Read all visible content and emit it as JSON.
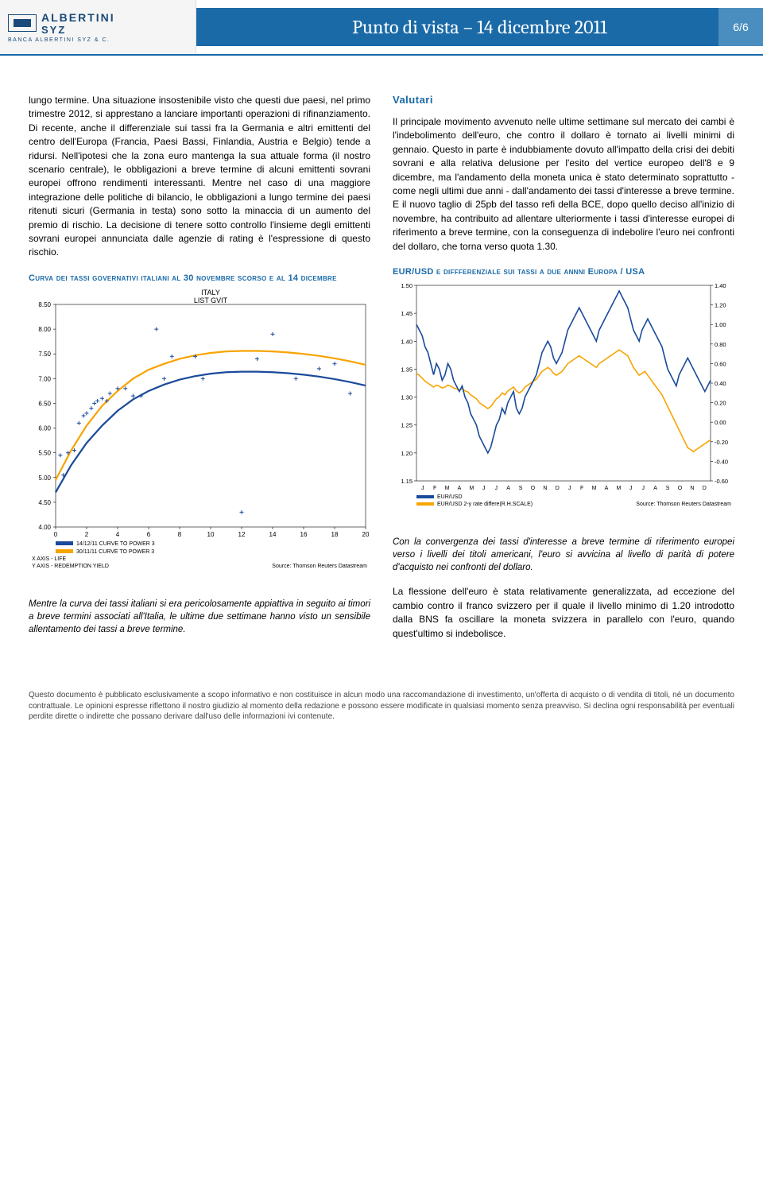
{
  "header": {
    "logo_main1": "ALBERTINI",
    "logo_main2": "SYZ",
    "logo_sub": "BANCA ALBERTINI SYZ & C.",
    "title": "Punto di vista – 14 dicembre 2011",
    "page": "6/6"
  },
  "left_col": {
    "body": "lungo termine. Una situazione insostenibile visto che questi due paesi, nel primo trimestre 2012, si apprestano a lanciare importanti operazioni di rifinanziamento. Di recente, anche il differenziale sui tassi fra la Germania e altri emittenti del centro dell'Europa (Francia, Paesi Bassi, Finlandia, Austria e Belgio) tende a ridursi. Nell'ipotesi che la zona euro mantenga la sua attuale forma (il nostro scenario centrale), le obbligazioni a breve termine di alcuni emittenti sovrani europei offrono rendimenti interessanti. Mentre nel caso di una maggiore integrazione delle politiche di bilancio, le obbligazioni a lungo termine dei paesi ritenuti sicuri (Germania in testa) sono sotto la minaccia di un aumento del premio di rischio. La decisione di tenere sotto controllo l'insieme degli emittenti sovrani europei annunciata dalle agenzie di rating è l'espressione di questo rischio.",
    "chart_heading": "Curva dei tassi governativi italiani al 30 novembre scorso e al 14 dicembre",
    "chart_caption": "Mentre la curva dei tassi italiani si era pericolosamente appiattiva in seguito ai timori a breve termini associati all'Italia, le ultime due settimane hanno visto un sensibile allentamento dei tassi a breve termine."
  },
  "right_col": {
    "section_heading": "Valutari",
    "body": "Il principale movimento avvenuto nelle ultime settimane sul mercato dei cambi è l'indebolimento dell'euro, che contro il dollaro è tornato ai livelli minimi di gennaio. Questo in parte è indubbiamente dovuto all'impatto della crisi dei debiti sovrani e alla relativa delusione per l'esito del vertice europeo dell'8 e 9 dicembre, ma l'andamento della moneta unica è stato determinato soprattutto - come negli ultimi due anni - dall'andamento dei tassi d'interesse a breve termine. E il nuovo taglio di 25pb del tasso refi della BCE, dopo quello deciso all'inizio di novembre, ha contribuito ad allentare ulteriormente i tassi d'interesse europei di riferimento a breve termine, con la conseguenza di indebolire l'euro nei confronti del dollaro, che torna verso quota 1.30.",
    "chart_heading": "EUR/USD e diffferenziale sui tassi a due annni Europa / USA",
    "chart_caption": "Con la convergenza dei tassi d'interesse a breve termine di riferimento europei verso i livelli dei titoli americani, l'euro si avvicina al livello di parità di potere d'acquisto nei confronti del dollaro.",
    "body2": "La flessione dell'euro è stata relativamente generalizzata, ad eccezione del cambio contro il franco svizzero per il quale il livello minimo di 1.20 introdotto dalla BNS fa oscillare la moneta svizzera in parallelo con l'euro, quando quest'ultimo si indebolisce."
  },
  "disclaimer": "Questo documento è pubblicato esclusivamente a scopo informativo e non costituisce in alcun modo una raccomandazione di investimento, un'offerta di acquisto o di vendita di titoli, né un documento contrattuale. Le opinioni espresse riflettono il nostro giudizio al momento della redazione e possono essere modificate in qualsiasi momento senza preavviso. Si declina ogni responsabilità per eventuali perdite dirette o indirette che possano derivare dall'uso delle informazioni ivi contenute.",
  "chart1": {
    "type": "line+scatter",
    "title": "ITALY",
    "subtitle": "LIST GVIT",
    "xlim": [
      0,
      20
    ],
    "xtick_step": 2,
    "ylim": [
      4.0,
      8.5
    ],
    "ytick_step": 0.5,
    "bg_color": "#ffffff",
    "line1_color": "#f7a400",
    "line2_color": "#1a4a9a",
    "scatter_color": "#1a4a9a",
    "legend": [
      "14/12/11 CURVE TO POWER 3",
      "30/11/11 CURVE TO POWER 3"
    ],
    "xaxis_label": "X AXIS - LIFE",
    "yaxis_label": "Y AXIS - REDEMPTION YIELD",
    "source": "Source: Thomson Reuters Datastream",
    "line1": [
      [
        0,
        4.95
      ],
      [
        1,
        5.55
      ],
      [
        2,
        6.05
      ],
      [
        3,
        6.45
      ],
      [
        4,
        6.75
      ],
      [
        5,
        7.0
      ],
      [
        6,
        7.18
      ],
      [
        7,
        7.3
      ],
      [
        8,
        7.4
      ],
      [
        9,
        7.47
      ],
      [
        10,
        7.52
      ],
      [
        11,
        7.55
      ],
      [
        12,
        7.56
      ],
      [
        13,
        7.56
      ],
      [
        14,
        7.55
      ],
      [
        15,
        7.53
      ],
      [
        16,
        7.5
      ],
      [
        17,
        7.46
      ],
      [
        18,
        7.41
      ],
      [
        19,
        7.35
      ],
      [
        20,
        7.28
      ]
    ],
    "line2": [
      [
        0,
        4.7
      ],
      [
        1,
        5.25
      ],
      [
        2,
        5.7
      ],
      [
        3,
        6.05
      ],
      [
        4,
        6.35
      ],
      [
        5,
        6.58
      ],
      [
        6,
        6.75
      ],
      [
        7,
        6.88
      ],
      [
        8,
        6.98
      ],
      [
        9,
        7.05
      ],
      [
        10,
        7.1
      ],
      [
        11,
        7.13
      ],
      [
        12,
        7.14
      ],
      [
        13,
        7.14
      ],
      [
        14,
        7.13
      ],
      [
        15,
        7.11
      ],
      [
        16,
        7.08
      ],
      [
        17,
        7.04
      ],
      [
        18,
        6.99
      ],
      [
        19,
        6.93
      ],
      [
        20,
        6.86
      ]
    ],
    "scatter": [
      [
        0.3,
        5.45
      ],
      [
        0.5,
        5.05
      ],
      [
        0.8,
        5.5
      ],
      [
        1.2,
        5.55
      ],
      [
        1.5,
        6.1
      ],
      [
        1.8,
        6.25
      ],
      [
        2.0,
        6.3
      ],
      [
        2.3,
        6.4
      ],
      [
        2.5,
        6.5
      ],
      [
        2.7,
        6.55
      ],
      [
        3.0,
        6.6
      ],
      [
        3.3,
        6.55
      ],
      [
        3.5,
        6.7
      ],
      [
        4.0,
        6.8
      ],
      [
        4.5,
        6.8
      ],
      [
        5.0,
        6.65
      ],
      [
        5.5,
        6.65
      ],
      [
        6.5,
        8.0
      ],
      [
        7.0,
        7.0
      ],
      [
        7.5,
        7.45
      ],
      [
        9.0,
        7.45
      ],
      [
        9.5,
        7.0
      ],
      [
        12.0,
        4.3
      ],
      [
        13.0,
        7.4
      ],
      [
        14.0,
        7.9
      ],
      [
        15.5,
        7.0
      ],
      [
        17.0,
        7.2
      ],
      [
        18.0,
        7.3
      ],
      [
        19.0,
        6.7
      ]
    ]
  },
  "chart2": {
    "type": "dual-line",
    "yleft_lim": [
      1.15,
      1.5
    ],
    "yleft_step": 0.05,
    "yright_lim": [
      -0.6,
      1.4
    ],
    "yright_step": 0.2,
    "bg_color": "#ffffff",
    "line1_color": "#1a4a9a",
    "line2_color": "#f7a400",
    "legend": [
      "EUR/USD",
      "EUR/USD 2-y rate differe(R.H.SCALE)"
    ],
    "source": "Source: Thomson Reuters Datastream",
    "months": [
      "J",
      "F",
      "M",
      "A",
      "M",
      "J",
      "J",
      "A",
      "S",
      "O",
      "N",
      "D",
      "J",
      "F",
      "M",
      "A",
      "M",
      "J",
      "J",
      "A",
      "S",
      "O",
      "N",
      "D"
    ],
    "line_left": [
      1.43,
      1.42,
      1.41,
      1.39,
      1.38,
      1.36,
      1.34,
      1.36,
      1.35,
      1.33,
      1.34,
      1.36,
      1.35,
      1.33,
      1.32,
      1.31,
      1.32,
      1.3,
      1.29,
      1.27,
      1.26,
      1.25,
      1.23,
      1.22,
      1.21,
      1.2,
      1.21,
      1.23,
      1.25,
      1.26,
      1.28,
      1.27,
      1.29,
      1.3,
      1.31,
      1.28,
      1.27,
      1.28,
      1.3,
      1.31,
      1.32,
      1.33,
      1.34,
      1.36,
      1.38,
      1.39,
      1.4,
      1.39,
      1.37,
      1.36,
      1.37,
      1.38,
      1.4,
      1.42,
      1.43,
      1.44,
      1.45,
      1.46,
      1.45,
      1.44,
      1.43,
      1.42,
      1.41,
      1.4,
      1.42,
      1.43,
      1.44,
      1.45,
      1.46,
      1.47,
      1.48,
      1.49,
      1.48,
      1.47,
      1.46,
      1.44,
      1.42,
      1.41,
      1.4,
      1.42,
      1.43,
      1.44,
      1.43,
      1.42,
      1.41,
      1.4,
      1.39,
      1.37,
      1.35,
      1.34,
      1.33,
      1.32,
      1.34,
      1.35,
      1.36,
      1.37,
      1.36,
      1.35,
      1.34,
      1.33,
      1.32,
      1.31,
      1.32,
      1.33
    ],
    "line_right": [
      0.5,
      0.48,
      0.45,
      0.42,
      0.4,
      0.38,
      0.36,
      0.38,
      0.37,
      0.35,
      0.36,
      0.38,
      0.37,
      0.35,
      0.34,
      0.33,
      0.34,
      0.32,
      0.31,
      0.28,
      0.26,
      0.24,
      0.2,
      0.18,
      0.16,
      0.14,
      0.16,
      0.2,
      0.24,
      0.26,
      0.3,
      0.28,
      0.32,
      0.34,
      0.36,
      0.32,
      0.3,
      0.32,
      0.36,
      0.38,
      0.4,
      0.42,
      0.44,
      0.48,
      0.52,
      0.54,
      0.56,
      0.54,
      0.5,
      0.48,
      0.5,
      0.52,
      0.56,
      0.6,
      0.62,
      0.64,
      0.66,
      0.68,
      0.66,
      0.64,
      0.62,
      0.6,
      0.58,
      0.56,
      0.6,
      0.62,
      0.64,
      0.66,
      0.68,
      0.7,
      0.72,
      0.74,
      0.72,
      0.7,
      0.68,
      0.62,
      0.56,
      0.52,
      0.48,
      0.5,
      0.52,
      0.48,
      0.44,
      0.4,
      0.36,
      0.32,
      0.28,
      0.22,
      0.16,
      0.1,
      0.04,
      -0.02,
      -0.08,
      -0.14,
      -0.2,
      -0.26,
      -0.28,
      -0.3,
      -0.28,
      -0.26,
      -0.24,
      -0.22,
      -0.2,
      -0.18
    ]
  }
}
